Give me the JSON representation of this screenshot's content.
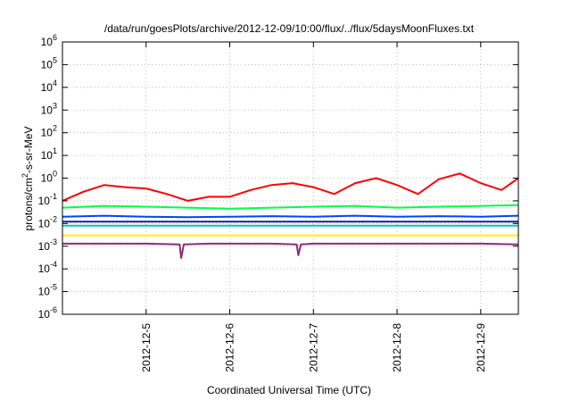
{
  "chart_data": {
    "type": "line",
    "title": "/data/run/goesPlots/archive/2012-12-09/10:00/flux/../flux/5daysMoonFluxes.txt",
    "xlabel": "Coordinated Universal Time (UTC)",
    "ylabel_parts": [
      "protons/cm",
      "2",
      "-s-sr-MeV"
    ],
    "yscale": "log",
    "ylim": [
      1e-06,
      1000000.0
    ],
    "y_ticks": [
      {
        "base": "10",
        "exp": "-6",
        "value": 1e-06
      },
      {
        "base": "10",
        "exp": "-5",
        "value": 1e-05
      },
      {
        "base": "10",
        "exp": "-4",
        "value": 0.0001
      },
      {
        "base": "10",
        "exp": "-3",
        "value": 0.001
      },
      {
        "base": "10",
        "exp": "-2",
        "value": 0.01
      },
      {
        "base": "10",
        "exp": "-1",
        "value": 0.1
      },
      {
        "base": "10",
        "exp": "0",
        "value": 1
      },
      {
        "base": "10",
        "exp": "1",
        "value": 10
      },
      {
        "base": "10",
        "exp": "2",
        "value": 100
      },
      {
        "base": "10",
        "exp": "3",
        "value": 1000
      },
      {
        "base": "10",
        "exp": "4",
        "value": 10000
      },
      {
        "base": "10",
        "exp": "5",
        "value": 100000
      },
      {
        "base": "10",
        "exp": "6",
        "value": 1000000
      }
    ],
    "xlim_days": [
      4.0,
      9.45
    ],
    "x_ticks": [
      {
        "label": "2012-12-5",
        "day": 5
      },
      {
        "label": "2012-12-6",
        "day": 6
      },
      {
        "label": "2012-12-7",
        "day": 7
      },
      {
        "label": "2012-12-8",
        "day": 8
      },
      {
        "label": "2012-12-9",
        "day": 9
      }
    ],
    "grid": true,
    "series": [
      {
        "color": "#ff0000",
        "x": [
          4.0,
          4.25,
          4.5,
          4.75,
          5.0,
          5.25,
          5.5,
          5.75,
          6.0,
          6.25,
          6.5,
          6.75,
          7.0,
          7.25,
          7.5,
          7.75,
          8.0,
          8.25,
          8.5,
          8.75,
          9.0,
          9.25,
          9.45
        ],
        "y": [
          0.1,
          0.25,
          0.5,
          0.4,
          0.35,
          0.2,
          0.1,
          0.15,
          0.15,
          0.3,
          0.5,
          0.6,
          0.4,
          0.2,
          0.6,
          1.0,
          0.5,
          0.2,
          0.9,
          1.6,
          0.6,
          0.3,
          1.0
        ]
      },
      {
        "color": "#00ff44",
        "x": [
          4.0,
          4.5,
          5.0,
          5.5,
          6.0,
          6.5,
          7.0,
          7.5,
          8.0,
          8.5,
          9.0,
          9.45
        ],
        "y": [
          0.05,
          0.06,
          0.055,
          0.05,
          0.045,
          0.05,
          0.055,
          0.06,
          0.05,
          0.055,
          0.06,
          0.065
        ]
      },
      {
        "color": "#00ccaa",
        "x": [
          4.0,
          4.5,
          5.0,
          5.5,
          6.0,
          6.5,
          7.0,
          7.5,
          8.0,
          8.5,
          9.0,
          9.45
        ],
        "y": [
          0.008,
          0.008,
          0.008,
          0.008,
          0.008,
          0.008,
          0.008,
          0.008,
          0.008,
          0.008,
          0.008,
          0.008
        ]
      },
      {
        "color": "#0044ff",
        "x": [
          4.0,
          4.5,
          5.0,
          5.5,
          6.0,
          6.5,
          7.0,
          7.5,
          8.0,
          8.5,
          9.0,
          9.45
        ],
        "y": [
          0.02,
          0.022,
          0.02,
          0.019,
          0.02,
          0.021,
          0.02,
          0.022,
          0.02,
          0.021,
          0.02,
          0.022
        ]
      },
      {
        "color": "#1a1aa0",
        "x": [
          4.0,
          4.5,
          5.0,
          5.5,
          6.0,
          6.5,
          7.0,
          7.5,
          8.0,
          8.5,
          9.0,
          9.45
        ],
        "y": [
          0.012,
          0.012,
          0.012,
          0.012,
          0.012,
          0.012,
          0.012,
          0.012,
          0.012,
          0.012,
          0.012,
          0.012
        ]
      },
      {
        "color": "#ffee00",
        "x": [
          4.0,
          4.5,
          5.0,
          5.5,
          6.0,
          6.5,
          7.0,
          7.5,
          8.0,
          8.5,
          9.0,
          9.45
        ],
        "y": [
          0.003,
          0.003,
          0.003,
          0.003,
          0.003,
          0.003,
          0.003,
          0.003,
          0.003,
          0.003,
          0.003,
          0.003
        ]
      },
      {
        "color": "#8b2c78",
        "x": [
          4.0,
          4.5,
          5.0,
          5.4,
          5.42,
          5.45,
          5.75,
          6.0,
          6.5,
          6.8,
          6.82,
          6.85,
          7.0,
          7.5,
          8.0,
          8.5,
          9.0,
          9.45
        ],
        "y": [
          0.0013,
          0.0013,
          0.0013,
          0.0012,
          0.0003,
          0.0012,
          0.0013,
          0.0013,
          0.0013,
          0.0012,
          0.0004,
          0.0012,
          0.0013,
          0.0013,
          0.0013,
          0.0013,
          0.0013,
          0.0012
        ]
      }
    ]
  }
}
